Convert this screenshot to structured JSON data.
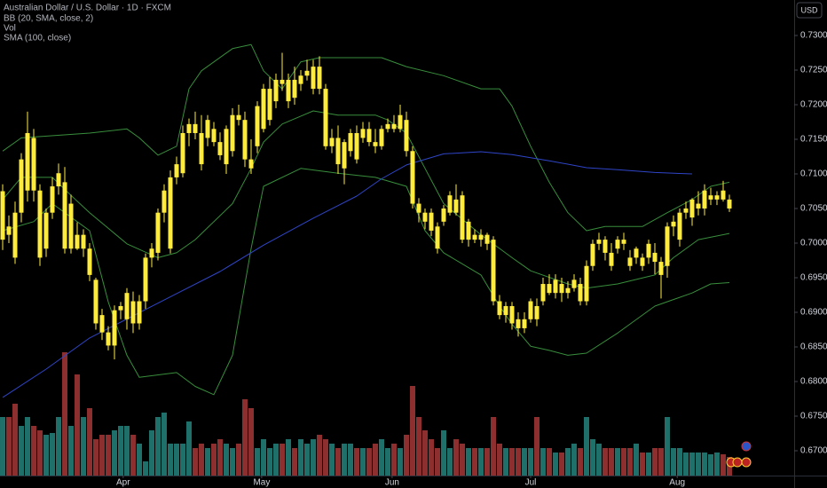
{
  "chart_data": {
    "type": "candlestick",
    "title": "Australian Dollar / U.S. Dollar · 1D · FXCM",
    "currency": "USD",
    "candle_color": "#ffeb3b",
    "ylim": [
      0.66641,
      0.73513
    ],
    "yticks": [
      {
        "value": 0.67,
        "label": "0.67000"
      },
      {
        "value": 0.675,
        "label": "0.67500"
      },
      {
        "value": 0.68,
        "label": "0.68000"
      },
      {
        "value": 0.685,
        "label": "0.68500"
      },
      {
        "value": 0.69,
        "label": "0.69000"
      },
      {
        "value": 0.695,
        "label": "0.69500"
      },
      {
        "value": 0.7,
        "label": "0.70000"
      },
      {
        "value": 0.705,
        "label": "0.70500"
      },
      {
        "value": 0.71,
        "label": "0.71000"
      },
      {
        "value": 0.715,
        "label": "0.71500"
      },
      {
        "value": 0.72,
        "label": "0.72000"
      },
      {
        "value": 0.725,
        "label": "0.72500"
      },
      {
        "value": 0.73,
        "label": "0.73000"
      }
    ],
    "xlim": [
      -0.43,
      127.43
    ],
    "xticks": [
      {
        "value": 19.4,
        "label": "Apr"
      },
      {
        "value": 41.7,
        "label": "May"
      },
      {
        "value": 62.7,
        "label": "Jun"
      },
      {
        "value": 85,
        "label": "Jul"
      },
      {
        "value": 108.6,
        "label": "Aug"
      }
    ],
    "ohlc": [
      [
        0.7005,
        0.7085,
        0.699,
        0.7075
      ],
      [
        0.7024,
        0.704,
        0.7,
        0.7012
      ],
      [
        0.7044,
        0.706,
        0.697,
        0.6979
      ],
      [
        0.7044,
        0.713,
        0.703,
        0.7121
      ],
      [
        0.7076,
        0.719,
        0.706,
        0.7159
      ],
      [
        0.7152,
        0.7165,
        0.706,
        0.7076
      ],
      [
        0.7076,
        0.7085,
        0.6967,
        0.6979
      ],
      [
        0.6992,
        0.705,
        0.698,
        0.7044
      ],
      [
        0.7044,
        0.7095,
        0.7035,
        0.7082
      ],
      [
        0.7082,
        0.7115,
        0.707,
        0.7101
      ],
      [
        0.7088,
        0.711,
        0.6985,
        0.6992
      ],
      [
        0.6992,
        0.707,
        0.6985,
        0.7057
      ],
      [
        0.7012,
        0.703,
        0.699,
        0.6992
      ],
      [
        0.6992,
        0.702,
        0.698,
        0.7012
      ],
      [
        0.6992,
        0.7,
        0.6945,
        0.6954
      ],
      [
        0.6947,
        0.695,
        0.6875,
        0.6884
      ],
      [
        0.6896,
        0.6905,
        0.686,
        0.6871
      ],
      [
        0.6871,
        0.688,
        0.6845,
        0.6852
      ],
      [
        0.6852,
        0.691,
        0.6832,
        0.6903
      ],
      [
        0.6903,
        0.6915,
        0.689,
        0.6909
      ],
      [
        0.689,
        0.6935,
        0.6875,
        0.6928
      ],
      [
        0.6916,
        0.693,
        0.687,
        0.6884
      ],
      [
        0.6884,
        0.6925,
        0.6875,
        0.6916
      ],
      [
        0.6916,
        0.6985,
        0.6905,
        0.6979
      ],
      [
        0.6979,
        0.7,
        0.6965,
        0.6992
      ],
      [
        0.6986,
        0.705,
        0.6975,
        0.7044
      ],
      [
        0.7044,
        0.7085,
        0.703,
        0.7076
      ],
      [
        0.6992,
        0.7105,
        0.6985,
        0.7095
      ],
      [
        0.7095,
        0.7125,
        0.7085,
        0.7114
      ],
      [
        0.7101,
        0.717,
        0.7095,
        0.7159
      ],
      [
        0.7159,
        0.718,
        0.714,
        0.7172
      ],
      [
        0.7172,
        0.719,
        0.715,
        0.7159
      ],
      [
        0.7159,
        0.7185,
        0.7105,
        0.7114
      ],
      [
        0.7152,
        0.7185,
        0.714,
        0.7178
      ],
      [
        0.7165,
        0.7175,
        0.714,
        0.7146
      ],
      [
        0.7146,
        0.716,
        0.712,
        0.7127
      ],
      [
        0.7114,
        0.717,
        0.71,
        0.7165
      ],
      [
        0.7133,
        0.7195,
        0.7125,
        0.7185
      ],
      [
        0.7185,
        0.72,
        0.717,
        0.7178
      ],
      [
        0.7178,
        0.719,
        0.711,
        0.7121
      ],
      [
        0.7121,
        0.715,
        0.71,
        0.7108
      ],
      [
        0.714,
        0.7205,
        0.713,
        0.7198
      ],
      [
        0.7165,
        0.723,
        0.716,
        0.7223
      ],
      [
        0.7178,
        0.724,
        0.717,
        0.7223
      ],
      [
        0.7205,
        0.7245,
        0.7195,
        0.7236
      ],
      [
        0.7236,
        0.7275,
        0.722,
        0.723
      ],
      [
        0.7205,
        0.7245,
        0.7195,
        0.7236
      ],
      [
        0.7236,
        0.7255,
        0.72,
        0.721
      ],
      [
        0.723,
        0.725,
        0.722,
        0.7242
      ],
      [
        0.7242,
        0.7265,
        0.7235,
        0.7249
      ],
      [
        0.7223,
        0.7265,
        0.7215,
        0.7255
      ],
      [
        0.7255,
        0.727,
        0.7215,
        0.7223
      ],
      [
        0.7223,
        0.723,
        0.7135,
        0.714
      ],
      [
        0.714,
        0.7165,
        0.713,
        0.7152
      ],
      [
        0.7152,
        0.717,
        0.71,
        0.7114
      ],
      [
        0.7108,
        0.715,
        0.7085,
        0.7146
      ],
      [
        0.7133,
        0.7165,
        0.7125,
        0.7159
      ],
      [
        0.7159,
        0.717,
        0.7115,
        0.7121
      ],
      [
        0.7152,
        0.7175,
        0.7145,
        0.7165
      ],
      [
        0.7165,
        0.7175,
        0.714,
        0.7146
      ],
      [
        0.7146,
        0.7165,
        0.713,
        0.714
      ],
      [
        0.714,
        0.717,
        0.7135,
        0.7165
      ],
      [
        0.7165,
        0.718,
        0.716,
        0.7172
      ],
      [
        0.7172,
        0.7185,
        0.716,
        0.7165
      ],
      [
        0.7165,
        0.72,
        0.716,
        0.7185
      ],
      [
        0.7178,
        0.719,
        0.7125,
        0.7133
      ],
      [
        0.7133,
        0.714,
        0.705,
        0.7057
      ],
      [
        0.7057,
        0.7065,
        0.703,
        0.7044
      ],
      [
        0.7044,
        0.705,
        0.702,
        0.7031
      ],
      [
        0.7044,
        0.705,
        0.701,
        0.7018
      ],
      [
        0.7024,
        0.703,
        0.6985,
        0.6992
      ],
      [
        0.7031,
        0.7055,
        0.7025,
        0.705
      ],
      [
        0.7044,
        0.7075,
        0.704,
        0.7069
      ],
      [
        0.7063,
        0.7085,
        0.704,
        0.7044
      ],
      [
        0.7069,
        0.7075,
        0.7,
        0.7005
      ],
      [
        0.7005,
        0.7035,
        0.6995,
        0.7031
      ],
      [
        0.7012,
        0.702,
        0.7,
        0.7005
      ],
      [
        0.7005,
        0.702,
        0.6995,
        0.7012
      ],
      [
        0.7012,
        0.7015,
        0.699,
        0.6999
      ],
      [
        0.7005,
        0.701,
        0.691,
        0.6916
      ],
      [
        0.6916,
        0.6925,
        0.689,
        0.6896
      ],
      [
        0.6896,
        0.6915,
        0.6885,
        0.6909
      ],
      [
        0.6909,
        0.6915,
        0.6875,
        0.6884
      ],
      [
        0.689,
        0.69,
        0.6865,
        0.6877
      ],
      [
        0.6877,
        0.69,
        0.687,
        0.689
      ],
      [
        0.689,
        0.692,
        0.6885,
        0.6916
      ],
      [
        0.6909,
        0.692,
        0.688,
        0.689
      ],
      [
        0.6916,
        0.695,
        0.691,
        0.6941
      ],
      [
        0.6941,
        0.6955,
        0.6925,
        0.6928
      ],
      [
        0.6928,
        0.6955,
        0.692,
        0.6947
      ],
      [
        0.6941,
        0.695,
        0.6915,
        0.6928
      ],
      [
        0.6928,
        0.6945,
        0.692,
        0.6935
      ],
      [
        0.6935,
        0.6955,
        0.693,
        0.6947
      ],
      [
        0.6941,
        0.695,
        0.691,
        0.6916
      ],
      [
        0.6916,
        0.6975,
        0.691,
        0.6967
      ],
      [
        0.6967,
        0.7005,
        0.696,
        0.6999
      ],
      [
        0.6999,
        0.7015,
        0.699,
        0.7005
      ],
      [
        0.7005,
        0.701,
        0.6975,
        0.6986
      ],
      [
        0.6986,
        0.7,
        0.696,
        0.6967
      ],
      [
        0.6992,
        0.701,
        0.6985,
        0.7005
      ],
      [
        0.7005,
        0.7015,
        0.699,
        0.6999
      ],
      [
        0.6979,
        0.699,
        0.696,
        0.6967
      ],
      [
        0.6979,
        0.6995,
        0.697,
        0.6992
      ],
      [
        0.6979,
        0.6985,
        0.696,
        0.6967
      ],
      [
        0.6979,
        0.7005,
        0.697,
        0.6999
      ],
      [
        0.6986,
        0.7,
        0.6955,
        0.6973
      ],
      [
        0.6973,
        0.698,
        0.692,
        0.6954
      ],
      [
        0.6967,
        0.703,
        0.695,
        0.7024
      ],
      [
        0.7024,
        0.704,
        0.701,
        0.7031
      ],
      [
        0.7005,
        0.705,
        0.6995,
        0.7044
      ],
      [
        0.7044,
        0.706,
        0.7035,
        0.705
      ],
      [
        0.7037,
        0.7065,
        0.7025,
        0.7063
      ],
      [
        0.705,
        0.7075,
        0.704,
        0.7057
      ],
      [
        0.705,
        0.7085,
        0.704,
        0.7076
      ],
      [
        0.7063,
        0.708,
        0.7055,
        0.7069
      ],
      [
        0.7063,
        0.7075,
        0.7055,
        0.7069
      ],
      [
        0.7076,
        0.709,
        0.706,
        0.7063
      ],
      [
        0.7063,
        0.707,
        0.7045,
        0.705
      ]
    ],
    "volume": {
      "name": "Vol",
      "up_color": "#1f6f6a",
      "down_color": "#8e2f2f",
      "vlim": [
        0,
        536
      ],
      "values": [
        66,
        66,
        81,
        56,
        66,
        56,
        51,
        46,
        48,
        66,
        139,
        56,
        114,
        66,
        76,
        41,
        46,
        46,
        51,
        56,
        56,
        46,
        36,
        16,
        51,
        66,
        71,
        36,
        36,
        36,
        61,
        31,
        36,
        31,
        36,
        41,
        36,
        31,
        36,
        86,
        76,
        31,
        41,
        31,
        36,
        36,
        41,
        31,
        41,
        36,
        41,
        46,
        41,
        36,
        31,
        36,
        36,
        31,
        31,
        31,
        36,
        41,
        31,
        36,
        31,
        46,
        101,
        66,
        51,
        41,
        31,
        51,
        31,
        41,
        36,
        31,
        31,
        31,
        31,
        66,
        36,
        31,
        31,
        31,
        31,
        31,
        66,
        31,
        31,
        26,
        26,
        31,
        36,
        31,
        66,
        41,
        36,
        31,
        31,
        31,
        31,
        31,
        36,
        26,
        26,
        31,
        31,
        66,
        31,
        31,
        26,
        26,
        26,
        26,
        24,
        26,
        24,
        21
      ]
    },
    "bb": {
      "name": "BB (20, SMA, close, 2)",
      "color": "#388e3c",
      "bands": [
        {
          "x": [
            0,
            3,
            14,
            20,
            22,
            25,
            28,
            30,
            32,
            37,
            40,
            42,
            45,
            48,
            51,
            57,
            61,
            65,
            71,
            77,
            80,
            82,
            85,
            88,
            91,
            94,
            97,
            103,
            107,
            111,
            114,
            117
          ],
          "values": [
            0.7133,
            0.7152,
            0.7159,
            0.7165,
            0.7152,
            0.7127,
            0.714,
            0.7223,
            0.7249,
            0.7281,
            0.7287,
            0.7249,
            0.7223,
            0.7262,
            0.7268,
            0.7268,
            0.7268,
            0.7255,
            0.7242,
            0.7223,
            0.7223,
            0.7198,
            0.714,
            0.7088,
            0.7044,
            0.7018,
            0.7024,
            0.7024,
            0.7044,
            0.7063,
            0.7082,
            0.7088
          ]
        },
        {
          "x": [
            0,
            3,
            8,
            11,
            14,
            20,
            25,
            28,
            31,
            37,
            40,
            42,
            45,
            50,
            54,
            60,
            62,
            65,
            68,
            71,
            77,
            82,
            85,
            91,
            94,
            99,
            105,
            108,
            112,
            117
          ],
          "values": [
            0.7063,
            0.7095,
            0.7095,
            0.7069,
            0.7044,
            0.6999,
            0.6979,
            0.6986,
            0.7005,
            0.7057,
            0.7108,
            0.7146,
            0.7172,
            0.7191,
            0.7185,
            0.7185,
            0.7178,
            0.7159,
            0.7108,
            0.7057,
            0.7012,
            0.6979,
            0.696,
            0.6941,
            0.6935,
            0.6941,
            0.6954,
            0.6979,
            0.7005,
            0.7014
          ]
        },
        {
          "x": [
            0,
            5,
            8,
            14,
            17,
            20,
            22,
            28,
            31,
            34,
            37,
            40,
            42,
            48,
            54,
            60,
            65,
            68,
            71,
            77,
            80,
            82,
            85,
            88,
            91,
            94,
            99,
            105,
            111,
            114,
            117
          ],
          "values": [
            0.7018,
            0.7031,
            0.7057,
            0.7018,
            0.6915,
            0.6838,
            0.6806,
            0.6813,
            0.6793,
            0.6781,
            0.6838,
            0.6992,
            0.7082,
            0.7108,
            0.7101,
            0.7095,
            0.7082,
            0.7018,
            0.6986,
            0.6954,
            0.6909,
            0.6883,
            0.6851,
            0.6845,
            0.6838,
            0.6841,
            0.687,
            0.6909,
            0.6928,
            0.6941,
            0.6943
          ]
        }
      ]
    },
    "sma": {
      "name": "SMA (100, close)",
      "color": "#2f45c8",
      "x": [
        0,
        7,
        14,
        21,
        28,
        35,
        42,
        50,
        57,
        61,
        65,
        71,
        77,
        82,
        88,
        94,
        99,
        105,
        111
      ],
      "values": [
        0.6777,
        0.6818,
        0.6863,
        0.6895,
        0.6927,
        0.6959,
        0.6997,
        0.7036,
        0.7068,
        0.7093,
        0.7113,
        0.7129,
        0.7132,
        0.7128,
        0.7119,
        0.7109,
        0.7106,
        0.7102,
        0.71
      ]
    }
  }
}
